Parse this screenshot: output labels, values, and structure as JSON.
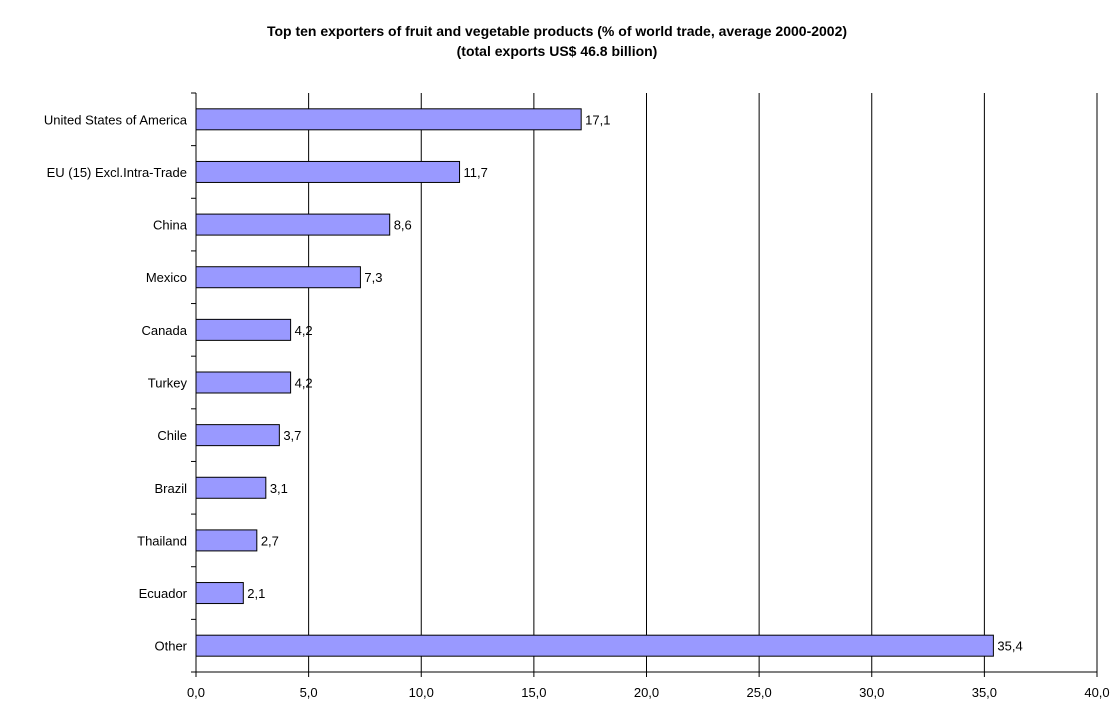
{
  "chart_data": {
    "type": "bar",
    "orientation": "horizontal",
    "title": "Top ten exporters of fruit and vegetable products (% of world trade, average 2000-2002)",
    "subtitle": "(total exports US$ 46.8 billion)",
    "categories": [
      "United States of America",
      "EU (15) Excl.Intra-Trade",
      "China",
      "Mexico",
      "Canada",
      "Turkey",
      "Chile",
      "Brazil",
      "Thailand",
      "Ecuador",
      "Other"
    ],
    "values": [
      17.1,
      11.7,
      8.6,
      7.3,
      4.2,
      4.2,
      3.7,
      3.1,
      2.7,
      2.1,
      35.4
    ],
    "data_labels": [
      "17,1",
      "11,7",
      "8,6",
      "7,3",
      "4,2",
      "4,2",
      "3,7",
      "3,1",
      "2,7",
      "2,1",
      "35,4"
    ],
    "xlim": [
      0,
      40
    ],
    "x_ticks": [
      0,
      5,
      10,
      15,
      20,
      25,
      30,
      35,
      40
    ],
    "x_tick_labels": [
      "0,0",
      "5,0",
      "10,0",
      "15,0",
      "20,0",
      "25,0",
      "30,0",
      "35,0",
      "40,0"
    ],
    "xlabel": "",
    "ylabel": "",
    "grid": "vertical major gridlines",
    "legend": "none",
    "bar_color": "#9999FF",
    "bar_edge_color": "#000000"
  }
}
